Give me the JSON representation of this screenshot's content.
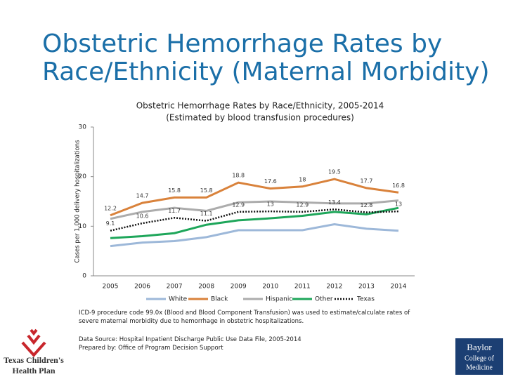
{
  "slide": {
    "title_lines": [
      "Obstetric Hemorrhage Rates by",
      "Race/Ethnicity (Maternal Morbidity)"
    ],
    "footnote": "ICD-9 procedure code 99.0x (Blood and Blood Component Transfusion) was used to estimate/calculate rates of severe maternal morbidity due to hemorrhage in obstetric hospitalizations.",
    "source_lines": [
      "Data Source: Hospital Inpatient Discharge Public Use Data File, 2005-2014",
      "Prepared by: Office of Program Decision Support"
    ]
  },
  "logos": {
    "left": [
      "Texas Children's",
      "Health Plan"
    ],
    "right": [
      "Baylor",
      "College of",
      "Medicine"
    ]
  },
  "chart_data": {
    "type": "line",
    "title_lines": [
      "Obstetric Hemorrhage Rates by Race/Ethnicity, 2005-2014",
      "(Estimated by blood transfusion procedures)"
    ],
    "y_label": "Cases per 1,000 delivery hospitalizations",
    "categories": [
      "2005",
      "2006",
      "2007",
      "2008",
      "2009",
      "2010",
      "2011",
      "2012",
      "2013",
      "2014"
    ],
    "ylim": [
      0,
      30
    ],
    "yticks": [
      0,
      10,
      20,
      30
    ],
    "series": [
      {
        "name": "White",
        "color": "#9db8d9",
        "values": [
          6.0,
          6.7,
          7.0,
          7.8,
          9.2,
          9.2,
          9.2,
          10.4,
          9.5,
          9.1
        ]
      },
      {
        "name": "Black",
        "color": "#d9823b",
        "data_labels": true,
        "values": [
          12.2,
          14.7,
          15.8,
          15.8,
          18.8,
          17.6,
          18.0,
          19.5,
          17.7,
          16.8
        ]
      },
      {
        "name": "Hispanic",
        "color": "#acacac",
        "values": [
          11.5,
          12.9,
          13.7,
          13.1,
          14.8,
          15.0,
          14.8,
          14.6,
          14.6,
          15.2
        ]
      },
      {
        "name": "Other",
        "color": "#1ea65a",
        "values": [
          7.6,
          8.0,
          8.6,
          10.3,
          11.2,
          11.6,
          12.1,
          12.9,
          12.4,
          13.7
        ]
      },
      {
        "name": "Texas",
        "color": "#111111",
        "dashed": true,
        "data_labels": true,
        "values": [
          9.1,
          10.6,
          11.7,
          11.1,
          12.9,
          13.0,
          12.9,
          13.4,
          12.8,
          13.0
        ]
      }
    ]
  }
}
